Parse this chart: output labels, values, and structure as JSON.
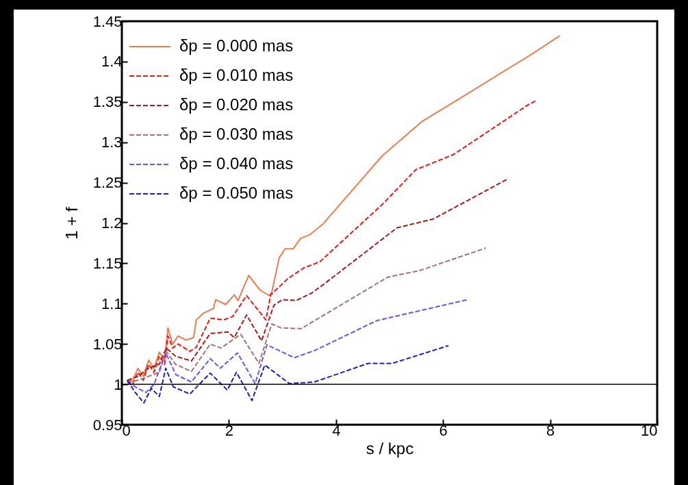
{
  "chart_data": {
    "type": "line",
    "xlabel": "s / kpc",
    "ylabel": "1 + f",
    "xlim": [
      0,
      10
    ],
    "xticks": [
      0,
      2,
      4,
      6,
      8,
      10
    ],
    "ylim": [
      0.95,
      1.45
    ],
    "yticks": [
      0.95,
      1,
      1.05,
      1.1,
      1.15,
      1.2,
      1.25,
      1.3,
      1.35,
      1.4,
      1.45
    ],
    "legend": "top left",
    "grid": false,
    "ref_lines": [
      {
        "axis": "y",
        "value": 1,
        "color": "#000000"
      }
    ],
    "series": [
      {
        "name": "δp = 0.000 mas",
        "color": "#f47a4c",
        "line_style": "solid",
        "x": [
          0.1,
          0.2,
          0.3,
          0.4,
          0.5,
          0.6,
          0.7,
          0.8,
          0.86,
          0.95,
          1.05,
          1.2,
          1.34,
          1.39,
          1.52,
          1.71,
          1.75,
          1.94,
          2.1,
          2.17,
          2.26,
          2.37,
          2.58,
          2.75,
          2.8,
          2.94,
          3.05,
          3.2,
          3.34,
          3.5,
          3.76,
          4.86,
          5.61,
          6.33,
          7.7,
          8.18
        ],
        "values": [
          1.005,
          1.005,
          1.02,
          1.01,
          1.03,
          1.02,
          1.04,
          1.03,
          1.07,
          1.05,
          1.06,
          1.055,
          1.058,
          1.08,
          1.088,
          1.094,
          1.105,
          1.099,
          1.111,
          1.104,
          1.118,
          1.135,
          1.117,
          1.11,
          1.114,
          1.157,
          1.168,
          1.168,
          1.181,
          1.185,
          1.199,
          1.283,
          1.326,
          1.355,
          1.411,
          1.432
        ]
      },
      {
        "name": "δp = 0.010 mas",
        "color": "#ff1010",
        "line_style": "dashed",
        "x": [
          0.1,
          0.2,
          0.3,
          0.4,
          0.5,
          0.6,
          0.7,
          0.8,
          0.86,
          0.95,
          1.05,
          1.27,
          1.39,
          1.65,
          1.9,
          2.07,
          2.33,
          2.69,
          2.78,
          3.1,
          3.39,
          3.7,
          4.88,
          5.49,
          6.2,
          7.6,
          7.75
        ],
        "values": [
          1.005,
          1.0,
          1.015,
          1.005,
          1.025,
          1.015,
          1.035,
          1.025,
          1.06,
          1.045,
          1.05,
          1.041,
          1.046,
          1.082,
          1.08,
          1.084,
          1.11,
          1.08,
          1.111,
          1.131,
          1.144,
          1.152,
          1.224,
          1.266,
          1.285,
          1.347,
          1.352
        ]
      },
      {
        "name": "δp = 0.020 mas",
        "color": "#b01818",
        "line_style": "dashed",
        "x": [
          0.1,
          0.3,
          0.5,
          0.7,
          0.83,
          1.0,
          1.3,
          1.65,
          1.98,
          2.1,
          2.33,
          2.61,
          2.84,
          3.0,
          3.26,
          3.54,
          3.73,
          5.14,
          5.82,
          7.19
        ],
        "values": [
          1.005,
          1.01,
          1.02,
          1.025,
          1.045,
          1.035,
          1.029,
          1.063,
          1.065,
          1.058,
          1.086,
          1.054,
          1.098,
          1.105,
          1.104,
          1.113,
          1.122,
          1.194,
          1.205,
          1.254
        ]
      },
      {
        "name": "δp = 0.030 mas",
        "color": "#a57272",
        "line_style": "dashed",
        "x": [
          0.1,
          0.3,
          0.5,
          0.7,
          0.83,
          1.0,
          1.3,
          1.65,
          1.85,
          2.22,
          2.56,
          2.8,
          2.97,
          3.35,
          3.6,
          4.97,
          5.56,
          6.8
        ],
        "values": [
          1.003,
          1.005,
          1.01,
          1.015,
          1.041,
          1.025,
          1.016,
          1.05,
          1.045,
          1.062,
          1.026,
          1.075,
          1.07,
          1.069,
          1.079,
          1.133,
          1.141,
          1.169
        ]
      },
      {
        "name": "δp = 0.040 mas",
        "color": "#6a50ff",
        "line_style": "dashed",
        "x": [
          0.1,
          0.3,
          0.45,
          0.6,
          0.82,
          1.01,
          1.3,
          1.65,
          1.84,
          2.16,
          2.49,
          2.71,
          3.22,
          3.6,
          3.73,
          4.76,
          6.46
        ],
        "values": [
          1.003,
          0.995,
          0.99,
          1.0,
          1.039,
          1.012,
          1.003,
          1.032,
          1.02,
          1.039,
          1.001,
          1.049,
          1.033,
          1.042,
          1.046,
          1.079,
          1.105
        ]
      },
      {
        "name": "δp = 0.050 mas",
        "color": "#1a1ad0",
        "line_style": "dashed",
        "x": [
          0.1,
          0.25,
          0.41,
          0.55,
          0.7,
          0.82,
          0.96,
          1.27,
          1.65,
          1.97,
          2.14,
          2.43,
          2.67,
          3.13,
          3.6,
          4.6,
          5.05,
          6.1
        ],
        "values": [
          1.005,
          0.99,
          0.977,
          0.995,
          0.985,
          1.02,
          0.997,
          0.988,
          1.014,
          0.993,
          1.015,
          0.98,
          1.024,
          1.001,
          1.003,
          1.026,
          1.026,
          1.048
        ]
      }
    ]
  }
}
